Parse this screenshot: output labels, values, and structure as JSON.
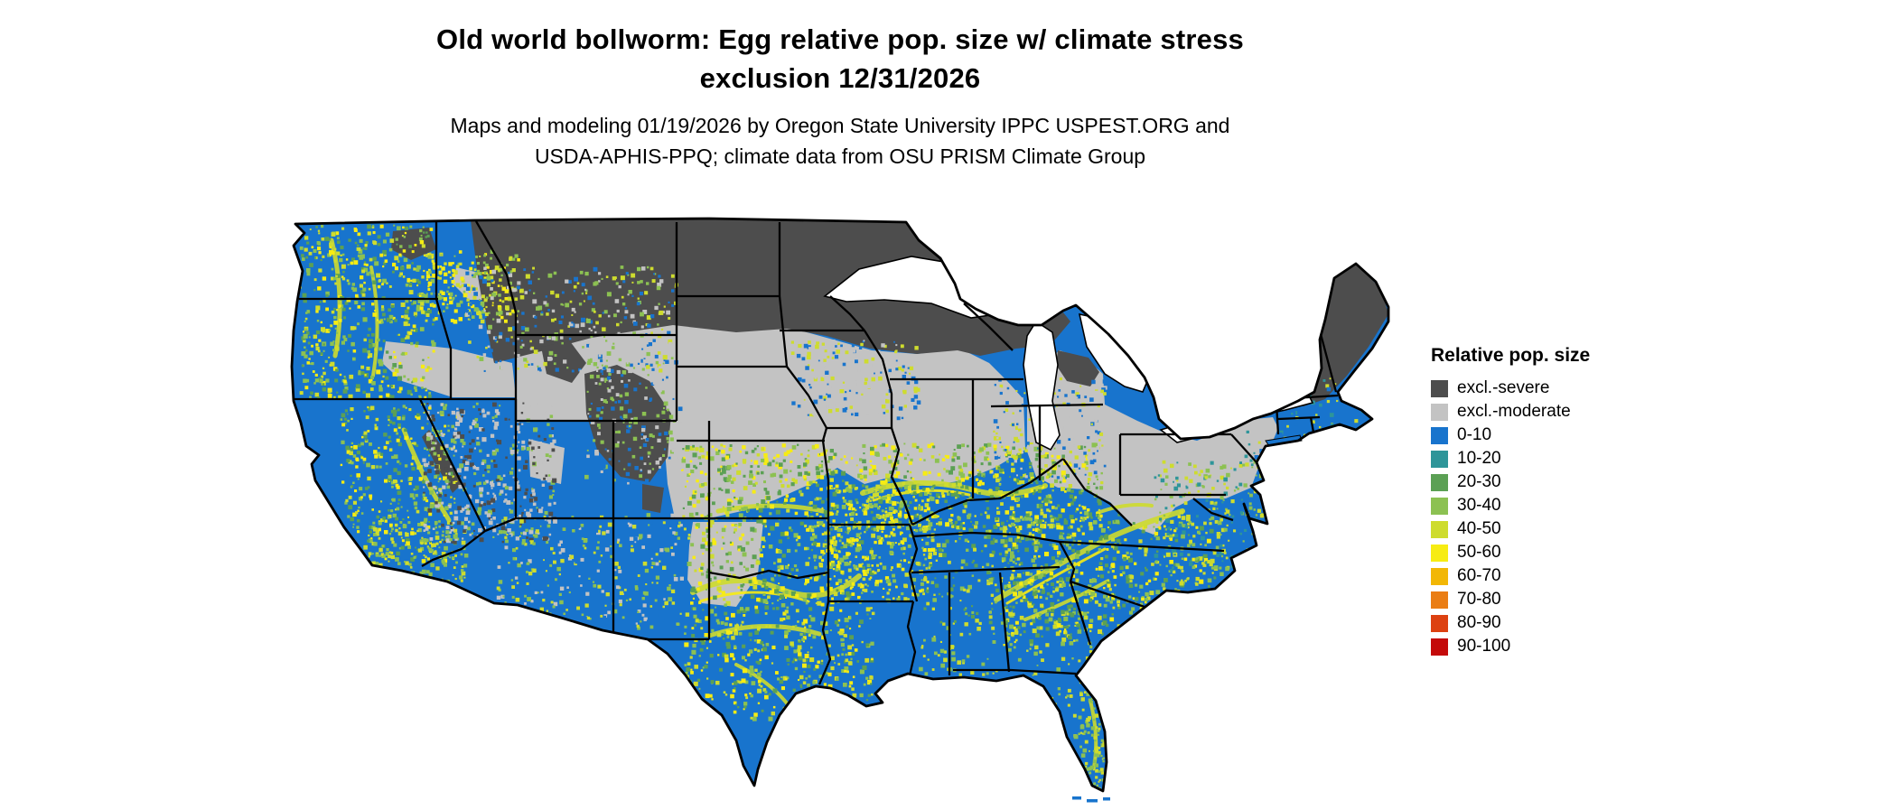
{
  "header": {
    "title_line1": "Old world bollworm: Egg relative pop. size w/ climate stress",
    "title_line2": "exclusion 12/31/2026",
    "subtitle": "Maps and modeling 01/19/2026 by Oregon State University IPPC USPEST.ORG and USDA-APHIS-PPQ; climate data from OSU PRISM Climate Group"
  },
  "legend": {
    "title": "Relative pop. size",
    "items": [
      {
        "label": "excl.-severe",
        "color": "#4D4D4D"
      },
      {
        "label": "excl.-moderate",
        "color": "#C3C3C3"
      },
      {
        "label": "0-10",
        "color": "#1874CD"
      },
      {
        "label": "10-20",
        "color": "#2E9599"
      },
      {
        "label": "20-30",
        "color": "#5BA054"
      },
      {
        "label": "30-40",
        "color": "#8CC152"
      },
      {
        "label": "40-50",
        "color": "#CEDC2E"
      },
      {
        "label": "50-60",
        "color": "#F7EC13"
      },
      {
        "label": "60-70",
        "color": "#F2B705"
      },
      {
        "label": "70-80",
        "color": "#EA7D14"
      },
      {
        "label": "80-90",
        "color": "#DD4111"
      },
      {
        "label": "90-100",
        "color": "#C40A0A"
      }
    ]
  },
  "map": {
    "base_color": "#1874CD",
    "border_color": "#000000",
    "water_color": "#FFFFFF",
    "background": "#FFFFFF"
  }
}
